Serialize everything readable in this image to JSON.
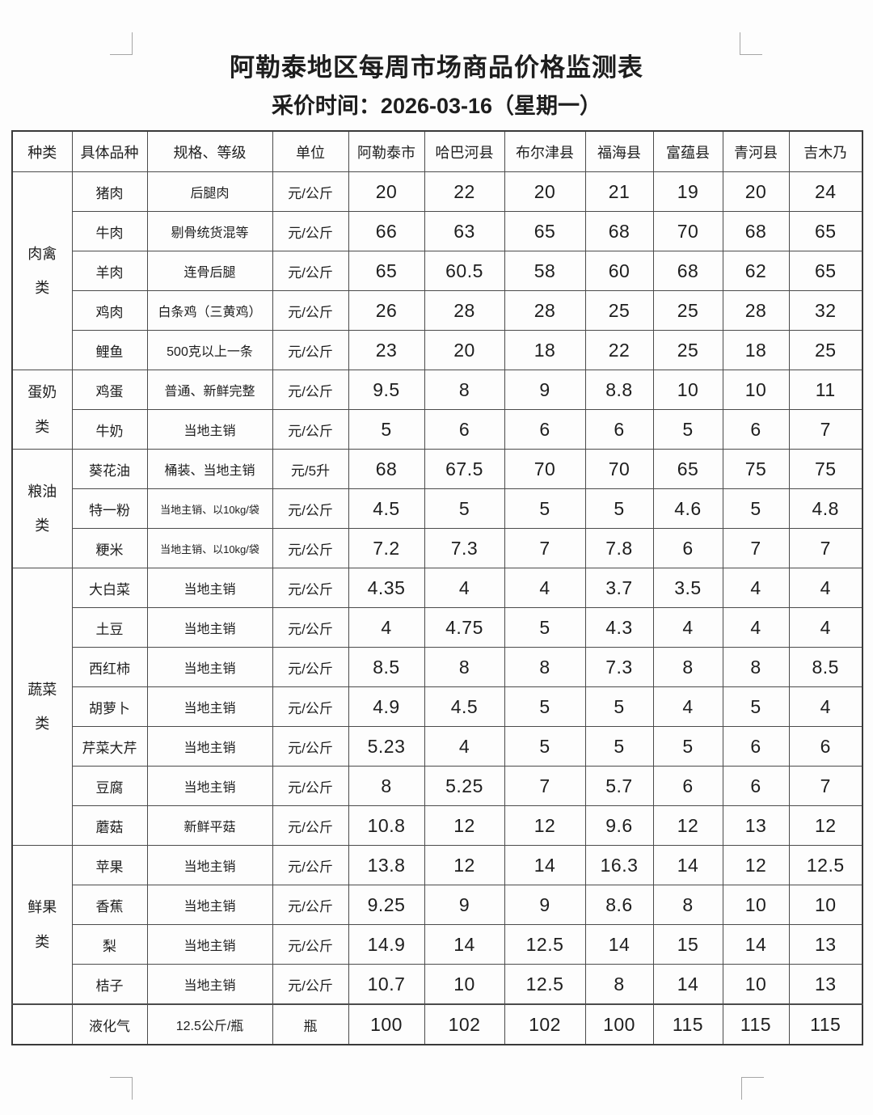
{
  "document": {
    "title": "阿勒泰地区每周市场商品价格监测表",
    "subtitle": "采价时间：2026-03-16（星期一）"
  },
  "table": {
    "headers": [
      "种类",
      "具体品种",
      "规格、等级",
      "单位",
      "阿勒泰市",
      "哈巴河县",
      "布尔津县",
      "福海县",
      "富蕴县",
      "青河县",
      "吉木乃"
    ],
    "groups": [
      {
        "category": "肉禽类",
        "rows": [
          {
            "item": "猪肉",
            "spec": "后腿肉",
            "unit": "元/公斤",
            "prices": [
              "20",
              "22",
              "20",
              "21",
              "19",
              "20",
              "24"
            ]
          },
          {
            "item": "牛肉",
            "spec": "剔骨统货混等",
            "unit": "元/公斤",
            "prices": [
              "66",
              "63",
              "65",
              "68",
              "70",
              "68",
              "65"
            ]
          },
          {
            "item": "羊肉",
            "spec": "连骨后腿",
            "unit": "元/公斤",
            "prices": [
              "65",
              "60.5",
              "58",
              "60",
              "68",
              "62",
              "65"
            ]
          },
          {
            "item": "鸡肉",
            "spec": "白条鸡（三黄鸡）",
            "unit": "元/公斤",
            "prices": [
              "26",
              "28",
              "28",
              "25",
              "25",
              "28",
              "32"
            ]
          },
          {
            "item": "鲤鱼",
            "spec": "500克以上一条",
            "unit": "元/公斤",
            "prices": [
              "23",
              "20",
              "18",
              "22",
              "25",
              "18",
              "25"
            ]
          }
        ]
      },
      {
        "category": "蛋奶类",
        "rows": [
          {
            "item": "鸡蛋",
            "spec": "普通、新鲜完整",
            "unit": "元/公斤",
            "prices": [
              "9.5",
              "8",
              "9",
              "8.8",
              "10",
              "10",
              "11"
            ]
          },
          {
            "item": "牛奶",
            "spec": "当地主销",
            "unit": "元/公斤",
            "prices": [
              "5",
              "6",
              "6",
              "6",
              "5",
              "6",
              "7"
            ]
          }
        ]
      },
      {
        "category": "粮油类",
        "rows": [
          {
            "item": "葵花油",
            "spec": "桶装、当地主销",
            "unit": "元/5升",
            "prices": [
              "68",
              "67.5",
              "70",
              "70",
              "65",
              "75",
              "75"
            ]
          },
          {
            "item": "特一粉",
            "spec": "当地主销、以10kg/袋",
            "unit": "元/公斤",
            "prices": [
              "4.5",
              "5",
              "5",
              "5",
              "4.6",
              "5",
              "4.8"
            ]
          },
          {
            "item": "粳米",
            "spec": "当地主销、以10kg/袋",
            "unit": "元/公斤",
            "prices": [
              "7.2",
              "7.3",
              "7",
              "7.8",
              "6",
              "7",
              "7"
            ]
          }
        ]
      },
      {
        "category": "蔬菜类",
        "rows": [
          {
            "item": "大白菜",
            "spec": "当地主销",
            "unit": "元/公斤",
            "prices": [
              "4.35",
              "4",
              "4",
              "3.7",
              "3.5",
              "4",
              "4"
            ]
          },
          {
            "item": "土豆",
            "spec": "当地主销",
            "unit": "元/公斤",
            "prices": [
              "4",
              "4.75",
              "5",
              "4.3",
              "4",
              "4",
              "4"
            ]
          },
          {
            "item": "西红柿",
            "spec": "当地主销",
            "unit": "元/公斤",
            "prices": [
              "8.5",
              "8",
              "8",
              "7.3",
              "8",
              "8",
              "8.5"
            ]
          },
          {
            "item": "胡萝卜",
            "spec": "当地主销",
            "unit": "元/公斤",
            "prices": [
              "4.9",
              "4.5",
              "5",
              "5",
              "4",
              "5",
              "4"
            ]
          },
          {
            "item": "芹菜大芹",
            "spec": "当地主销",
            "unit": "元/公斤",
            "prices": [
              "5.23",
              "4",
              "5",
              "5",
              "5",
              "6",
              "6"
            ]
          },
          {
            "item": "豆腐",
            "spec": "当地主销",
            "unit": "元/公斤",
            "prices": [
              "8",
              "5.25",
              "7",
              "5.7",
              "6",
              "6",
              "7"
            ]
          },
          {
            "item": "蘑菇",
            "spec": "新鲜平菇",
            "unit": "元/公斤",
            "prices": [
              "10.8",
              "12",
              "12",
              "9.6",
              "12",
              "13",
              "12"
            ]
          }
        ]
      },
      {
        "category": "鲜果类",
        "rows": [
          {
            "item": "苹果",
            "spec": "当地主销",
            "unit": "元/公斤",
            "prices": [
              "13.8",
              "12",
              "14",
              "16.3",
              "14",
              "12",
              "12.5"
            ]
          },
          {
            "item": "香蕉",
            "spec": "当地主销",
            "unit": "元/公斤",
            "prices": [
              "9.25",
              "9",
              "9",
              "8.6",
              "8",
              "10",
              "10"
            ]
          },
          {
            "item": "梨",
            "spec": "当地主销",
            "unit": "元/公斤",
            "prices": [
              "14.9",
              "14",
              "12.5",
              "14",
              "15",
              "14",
              "13"
            ]
          },
          {
            "item": "桔子",
            "spec": "当地主销",
            "unit": "元/公斤",
            "prices": [
              "10.7",
              "10",
              "12.5",
              "8",
              "14",
              "10",
              "13"
            ]
          }
        ]
      },
      {
        "category": "",
        "rows": [
          {
            "item": "液化气",
            "spec": "12.5公斤/瓶",
            "unit": "瓶",
            "prices": [
              "100",
              "102",
              "102",
              "100",
              "115",
              "115",
              "115"
            ]
          }
        ]
      }
    ]
  }
}
